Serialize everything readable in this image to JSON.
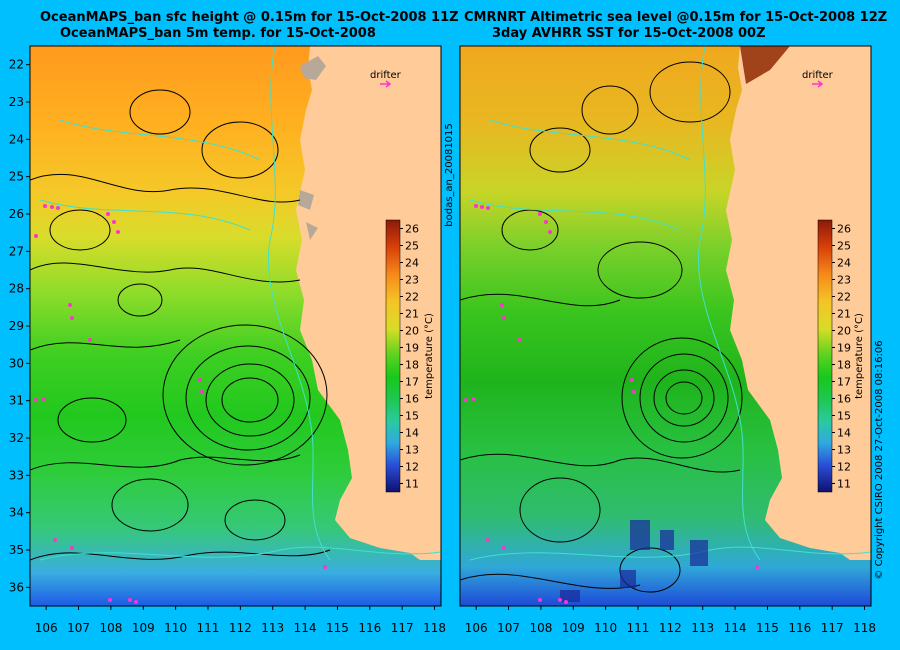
{
  "left_panel": {
    "title_line1": "OceanMAPS_ban sfc height @ 0.15m for 15-Oct-2008 11Z",
    "title_line2": "OceanMAPS_ban 5m temp. for 15-Oct-2008",
    "drifter_label": "drifter",
    "colorbar_label": "temperature (°C)"
  },
  "right_panel": {
    "title_line1": "CMRNRT Altimetric sea level  @0.15m  for 15-Oct-2008 12Z",
    "title_line2": "3day AVHRR SST for 15-Oct-2008 00Z",
    "drifter_label": "drifter",
    "colorbar_label": "temperature (°C)"
  },
  "side_labels": {
    "left_vertical": "bodas_an_20081015",
    "right_vertical": "© Copyright CSIRO 2008   27-Oct-2008 08:16:06"
  },
  "axes": {
    "lat_labels": [
      "22",
      "23",
      "24",
      "25",
      "26",
      "27",
      "28",
      "29",
      "30",
      "31",
      "32",
      "33",
      "34",
      "35",
      "36"
    ],
    "lon_labels": [
      "106",
      "107",
      "108",
      "109",
      "110",
      "111",
      "112",
      "113",
      "114",
      "115",
      "116",
      "117",
      "118"
    ],
    "lat_range": [
      21.5,
      36.5
    ],
    "lon_range": [
      105.5,
      118.2
    ]
  },
  "colorbar": {
    "ticks": [
      "26",
      "25",
      "24",
      "23",
      "22",
      "21",
      "20",
      "19",
      "18",
      "17",
      "16",
      "15",
      "14",
      "13",
      "12",
      "11"
    ],
    "range": [
      10.5,
      26.5
    ]
  },
  "colors": {
    "background": "#00bfff",
    "land": "#ffcc99",
    "contour": "#000000",
    "bathymetry": "#40e0d0",
    "drifter": "#ff33cc"
  }
}
